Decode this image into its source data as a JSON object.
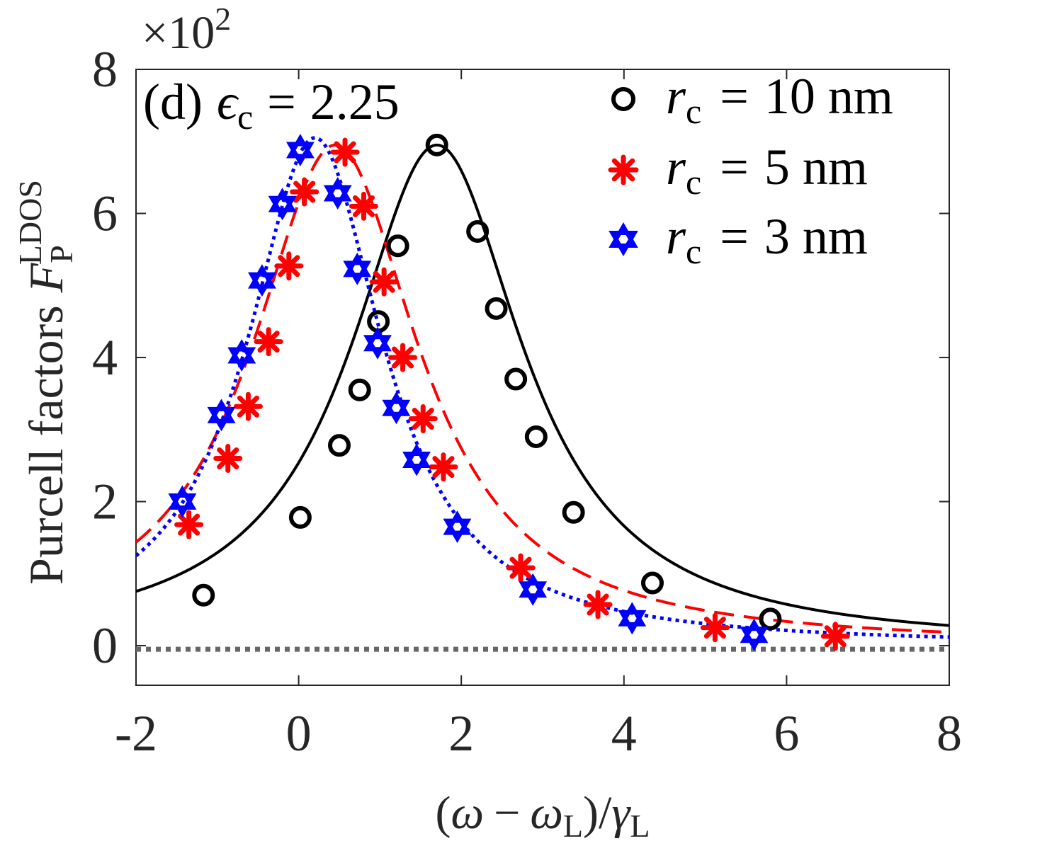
{
  "chart_data": {
    "type": "line",
    "title": "",
    "panel_label": "(d)",
    "annotation": {
      "symbol": "ϵ",
      "subscript": "c",
      "relation": "=",
      "value": "2.25"
    },
    "exponent_label": {
      "base": "×10",
      "power": "2"
    },
    "xlabel": {
      "open": "(",
      "omega": "ω",
      "minus": "−",
      "omega2": "ω",
      "sub1": "L",
      "close": ")/",
      "gamma": "γ",
      "sub2": "L"
    },
    "ylabel": {
      "text": "Purcell factors",
      "symbol": "F",
      "subscript": "P",
      "superscript": "LDOS"
    },
    "xlim": [
      -2,
      8
    ],
    "ylim": [
      -0.55,
      8
    ],
    "xticks": [
      -2,
      0,
      2,
      4,
      6,
      8
    ],
    "xtick_labels": [
      "-2",
      "0",
      "2",
      "4",
      "6",
      "8"
    ],
    "yticks": [
      0,
      2,
      4,
      6,
      8
    ],
    "ytick_labels": [
      "0",
      "2",
      "4",
      "6",
      "8"
    ],
    "legend_position": "top-right",
    "zero_line": {
      "y": -0.05,
      "color": "#666666",
      "style": "dotted"
    },
    "series": [
      {
        "name": "r_c = 10 nm",
        "legend": {
          "symbol": "r",
          "subscript": "c",
          "relation": "=",
          "value": "10 nm"
        },
        "color": "#000000",
        "line_style": "solid",
        "marker": "circle",
        "curve": {
          "x0": 1.7,
          "gamma": 1.29,
          "peak": 6.95
        },
        "markers_x": [
          -1.17,
          0.02,
          0.5,
          0.75,
          0.98,
          1.22,
          1.7,
          2.2,
          2.43,
          2.67,
          2.92,
          3.38,
          4.35,
          5.8
        ],
        "markers_y": [
          0.7,
          1.78,
          2.78,
          3.55,
          4.5,
          5.55,
          6.95,
          5.75,
          4.68,
          3.7,
          2.9,
          1.85,
          0.87,
          0.37
        ]
      },
      {
        "name": "r_c = 5 nm",
        "legend": {
          "symbol": "r",
          "subscript": "c",
          "relation": "=",
          "value": "5 nm"
        },
        "color": "#ff0000",
        "line_style": "dashed",
        "marker": "asterisk",
        "curve": {
          "x0": 0.45,
          "gamma": 1.25,
          "peak": 6.95
        },
        "markers_x": [
          -1.35,
          -0.87,
          -0.62,
          -0.37,
          -0.12,
          0.07,
          0.57,
          0.8,
          1.05,
          1.28,
          1.53,
          1.78,
          2.73,
          3.68,
          5.12,
          6.6
        ],
        "markers_y": [
          1.68,
          2.6,
          3.32,
          4.22,
          5.27,
          6.3,
          6.85,
          6.1,
          5.05,
          4.0,
          3.15,
          2.48,
          1.08,
          0.57,
          0.25,
          0.13
        ]
      },
      {
        "name": "r_c = 3 nm",
        "legend": {
          "symbol": "r",
          "subscript": "c",
          "relation": "=",
          "value": "3 nm"
        },
        "color": "#0000ff",
        "line_style": "dotted",
        "marker": "hexagram",
        "curve": {
          "x0": 0.2,
          "gamma": 1.02,
          "peak": 7.05
        },
        "markers_x": [
          -1.43,
          -0.95,
          -0.7,
          -0.45,
          -0.2,
          0.02,
          0.48,
          0.72,
          0.97,
          1.2,
          1.45,
          1.95,
          2.88,
          4.1,
          5.6
        ],
        "markers_y": [
          2.0,
          3.2,
          4.03,
          5.07,
          6.13,
          6.88,
          6.28,
          5.23,
          4.2,
          3.3,
          2.58,
          1.65,
          0.78,
          0.38,
          0.15
        ]
      }
    ]
  }
}
